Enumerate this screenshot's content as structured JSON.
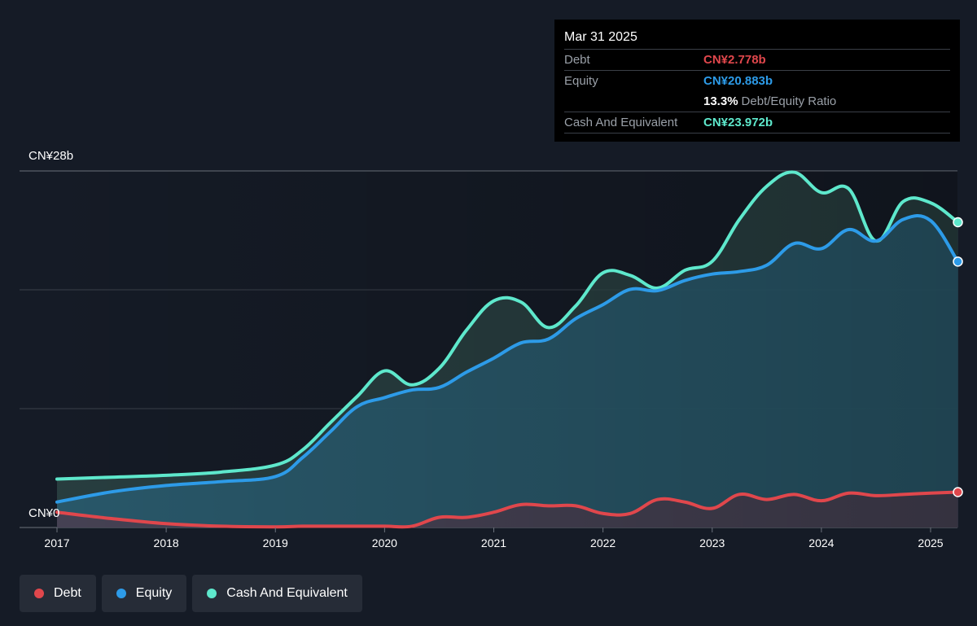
{
  "tooltip": {
    "date": "Mar 31 2025",
    "debt_label": "Debt",
    "debt_value": "CN¥2.778b",
    "equity_label": "Equity",
    "equity_value": "CN¥20.883b",
    "ratio_value": "13.3%",
    "ratio_label": "Debt/Equity Ratio",
    "cash_label": "Cash And Equivalent",
    "cash_value": "CN¥23.972b"
  },
  "legend": [
    {
      "label": "Debt",
      "color": "#e0474c"
    },
    {
      "label": "Equity",
      "color": "#2d9be8"
    },
    {
      "label": "Cash And Equivalent",
      "color": "#5ee8cc"
    }
  ],
  "chart_data": {
    "type": "area",
    "y_top_label": "CN¥28b",
    "y_bottom_label": "CN¥0",
    "ylim": [
      0,
      28
    ],
    "unit": "CN¥ billions",
    "xlim": [
      2017,
      2025.25
    ],
    "x_ticks": [
      "2017",
      "2018",
      "2019",
      "2020",
      "2021",
      "2022",
      "2023",
      "2024",
      "2025"
    ],
    "x": [
      2017.0,
      2017.5,
      2018.0,
      2018.5,
      2019.0,
      2019.25,
      2019.5,
      2019.75,
      2020.0,
      2020.25,
      2020.5,
      2020.75,
      2021.0,
      2021.25,
      2021.5,
      2021.75,
      2022.0,
      2022.25,
      2022.5,
      2022.75,
      2023.0,
      2023.25,
      2023.5,
      2023.75,
      2024.0,
      2024.25,
      2024.5,
      2024.75,
      2025.0,
      2025.25
    ],
    "series": [
      {
        "name": "Debt",
        "color": "#e0474c",
        "values": [
          1.2,
          0.7,
          0.3,
          0.1,
          0.05,
          0.1,
          0.1,
          0.1,
          0.1,
          0.1,
          0.8,
          0.8,
          1.2,
          1.8,
          1.7,
          1.7,
          1.1,
          1.1,
          2.2,
          2.0,
          1.5,
          2.6,
          2.2,
          2.6,
          2.1,
          2.7,
          2.5,
          2.6,
          2.7,
          2.78
        ]
      },
      {
        "name": "Equity",
        "color": "#2d9be8",
        "values": [
          2.0,
          2.8,
          3.3,
          3.6,
          4.0,
          5.5,
          7.5,
          9.5,
          10.2,
          10.8,
          11.0,
          12.2,
          13.3,
          14.5,
          14.8,
          16.4,
          17.5,
          18.7,
          18.6,
          19.4,
          19.9,
          20.1,
          20.6,
          22.3,
          21.9,
          23.4,
          22.5,
          24.2,
          24.1,
          20.883
        ]
      },
      {
        "name": "Cash And Equivalent",
        "color": "#5ee8cc",
        "values": [
          3.8,
          3.95,
          4.1,
          4.35,
          4.9,
          6.1,
          8.2,
          10.3,
          12.3,
          11.2,
          12.5,
          15.5,
          17.8,
          17.7,
          15.7,
          17.4,
          20.0,
          19.8,
          18.8,
          20.2,
          20.9,
          24.2,
          26.8,
          27.9,
          26.3,
          26.6,
          22.5,
          25.6,
          25.5,
          23.972
        ]
      }
    ]
  }
}
